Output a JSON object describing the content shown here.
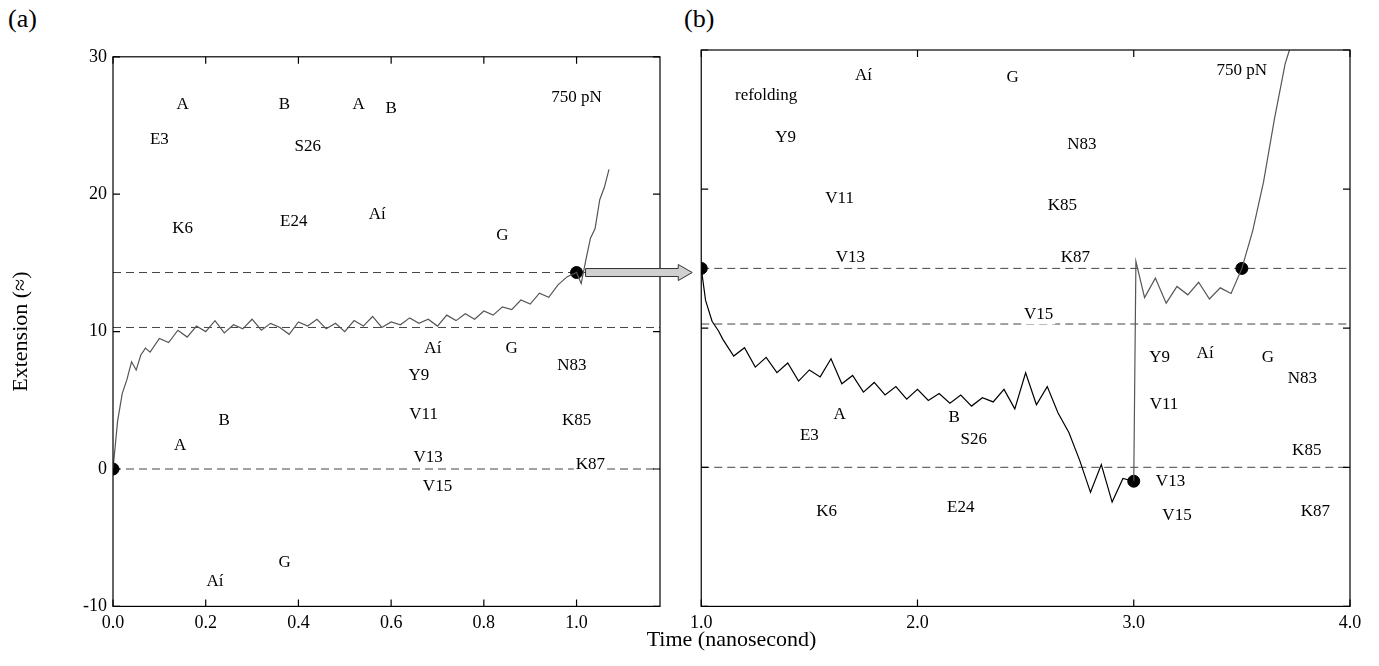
{
  "chart_data": [
    {
      "type": "line",
      "title": "(a)",
      "xlabel": "Time (nanosecond)",
      "ylabel": "Extension (≈)",
      "xlim": [
        0,
        1.18
      ],
      "xticks": [
        {
          "value": 0,
          "label": "0.0"
        },
        {
          "value": 0.2,
          "label": "0.2"
        },
        {
          "value": 0.4,
          "label": "0.4"
        },
        {
          "value": 0.6,
          "label": "0.6"
        },
        {
          "value": 0.8,
          "label": "0.8"
        },
        {
          "value": 1.0,
          "label": "1.0"
        }
      ],
      "ylim": [
        -10,
        30
      ],
      "yticks": [
        -10,
        0,
        10,
        20,
        30
      ],
      "grid": false,
      "x": [
        0,
        0.01,
        0.02,
        0.03,
        0.04,
        0.05,
        0.06,
        0.07,
        0.08,
        0.1,
        0.12,
        0.14,
        0.16,
        0.18,
        0.2,
        0.22,
        0.24,
        0.26,
        0.28,
        0.3,
        0.32,
        0.34,
        0.36,
        0.38,
        0.4,
        0.42,
        0.44,
        0.46,
        0.48,
        0.5,
        0.52,
        0.54,
        0.56,
        0.58,
        0.6,
        0.62,
        0.64,
        0.66,
        0.68,
        0.7,
        0.72,
        0.74,
        0.76,
        0.78,
        0.8,
        0.82,
        0.84,
        0.86,
        0.88,
        0.9,
        0.92,
        0.94,
        0.96,
        0.98,
        1.0,
        1.01,
        1.02,
        1.03,
        1.04,
        1.05,
        1.06,
        1.07
      ],
      "series": [
        {
          "color": "#555555",
          "values": [
            0,
            3.5,
            5.5,
            6.5,
            7.8,
            7.2,
            8.3,
            8.8,
            8.5,
            9.5,
            9.2,
            10.1,
            9.6,
            10.4,
            10.0,
            10.8,
            9.9,
            10.5,
            10.2,
            10.9,
            10.1,
            10.6,
            10.3,
            9.8,
            10.7,
            10.4,
            10.9,
            10.2,
            10.6,
            10.0,
            10.8,
            10.4,
            11.1,
            10.3,
            10.7,
            10.5,
            11.0,
            10.6,
            10.9,
            10.4,
            11.2,
            10.8,
            11.3,
            10.9,
            11.5,
            11.2,
            11.8,
            11.6,
            12.3,
            12.0,
            12.8,
            12.5,
            13.4,
            14.0,
            14.3,
            13.5,
            15.2,
            16.8,
            17.5,
            19.6,
            20.5,
            21.8
          ]
        }
      ],
      "points": {
        "x": [
          0,
          1.0
        ],
        "y": [
          0,
          14.3
        ]
      },
      "reference_lines": [
        0,
        10.3,
        14.3
      ],
      "annotations": [
        {
          "text": "A",
          "x": 0.15,
          "y": 26.5
        },
        {
          "text": "B",
          "x": 0.37,
          "y": 26.5
        },
        {
          "text": "E3",
          "x": 0.1,
          "y": 24
        },
        {
          "text": "S26",
          "x": 0.42,
          "y": 23.5
        },
        {
          "text": "K6",
          "x": 0.15,
          "y": 17.5
        },
        {
          "text": "E24",
          "x": 0.39,
          "y": 18
        },
        {
          "text": "A",
          "x": 0.53,
          "y": 26.5
        },
        {
          "text": "B",
          "x": 0.6,
          "y": 26.2
        },
        {
          "text": "Aí",
          "x": 0.57,
          "y": 18.5
        },
        {
          "text": "G",
          "x": 0.84,
          "y": 17
        },
        {
          "text": "750 pN",
          "x": 1.0,
          "y": 27
        },
        {
          "text": "Aí",
          "x": 0.69,
          "y": 8.8
        },
        {
          "text": "G",
          "x": 0.86,
          "y": 8.8
        },
        {
          "text": "Y9",
          "x": 0.66,
          "y": 6.8
        },
        {
          "text": "N83",
          "x": 0.99,
          "y": 7.5
        },
        {
          "text": "V11",
          "x": 0.67,
          "y": 4
        },
        {
          "text": "K85",
          "x": 1.0,
          "y": 3.5
        },
        {
          "text": "V13",
          "x": 0.68,
          "y": 0.8
        },
        {
          "text": "K87",
          "x": 1.03,
          "y": 0.3
        },
        {
          "text": "V15",
          "x": 0.7,
          "y": -1.3
        },
        {
          "text": "A",
          "x": 0.145,
          "y": 1.7
        },
        {
          "text": "B",
          "x": 0.24,
          "y": 3.5
        },
        {
          "text": "Aí",
          "x": 0.22,
          "y": -8.2
        },
        {
          "text": "G",
          "x": 0.37,
          "y": -6.8
        }
      ]
    },
    {
      "type": "line",
      "title": "(b)",
      "tick_labels": "x",
      "xlim": [
        1.0,
        4.0
      ],
      "xticks": [
        {
          "value": 1.0,
          "label": "1.0"
        },
        {
          "value": 2.0,
          "label": "2.0"
        },
        {
          "value": 3.0,
          "label": "3.0"
        },
        {
          "value": 4.0,
          "label": "4.0"
        }
      ],
      "ylim": [
        -10,
        30
      ],
      "yticks": [
        -10,
        0,
        10,
        20,
        30
      ],
      "grid": false,
      "x": [
        1.0,
        1.02,
        1.05,
        1.08,
        1.1,
        1.15,
        1.2,
        1.25,
        1.3,
        1.35,
        1.4,
        1.45,
        1.5,
        1.55,
        1.6,
        1.65,
        1.7,
        1.75,
        1.8,
        1.85,
        1.9,
        1.95,
        2.0,
        2.05,
        2.1,
        2.15,
        2.2,
        2.25,
        2.3,
        2.35,
        2.4,
        2.45,
        2.5,
        2.55,
        2.6,
        2.65,
        2.7,
        2.75,
        2.8,
        2.85,
        2.9,
        2.95,
        3.0,
        3.01,
        3.05,
        3.1,
        3.15,
        3.2,
        3.25,
        3.3,
        3.35,
        3.4,
        3.45,
        3.5,
        3.55,
        3.6,
        3.65,
        3.7,
        3.72
      ],
      "series": [
        {
          "color": "#000000",
          "values": [
            14.3,
            12.0,
            10.5,
            9.8,
            9.2,
            8.0,
            8.6,
            7.2,
            7.9,
            6.8,
            7.5,
            6.2,
            7.0,
            6.5,
            7.8,
            6.0,
            6.6,
            5.4,
            6.1,
            5.2,
            5.8,
            4.9,
            5.6,
            4.8,
            5.3,
            4.6,
            5.2,
            4.4,
            5.0,
            4.7,
            5.6,
            4.2,
            6.8,
            4.5,
            5.8,
            3.9,
            2.5,
            0.5,
            -1.8,
            0.2,
            -2.5,
            -0.8,
            -1.0,
            null,
            null,
            null,
            null,
            null,
            null,
            null,
            null,
            null,
            null,
            null,
            null,
            null,
            null,
            null,
            null
          ]
        },
        {
          "color": "#555555",
          "values": [
            null,
            null,
            null,
            null,
            null,
            null,
            null,
            null,
            null,
            null,
            null,
            null,
            null,
            null,
            null,
            null,
            null,
            null,
            null,
            null,
            null,
            null,
            null,
            null,
            null,
            null,
            null,
            null,
            null,
            null,
            null,
            null,
            null,
            null,
            null,
            null,
            null,
            null,
            null,
            null,
            null,
            null,
            -1.0,
            14.8,
            12.2,
            13.6,
            11.8,
            13.0,
            12.4,
            13.3,
            12.1,
            12.9,
            12.5,
            14.3,
            17.0,
            20.5,
            25.0,
            29.0,
            30.0
          ]
        }
      ],
      "points": {
        "x": [
          1.0,
          3.0,
          3.5
        ],
        "y": [
          14.3,
          -1.0,
          14.3
        ]
      },
      "reference_lines": [
        0,
        10.3,
        14.3
      ],
      "annotations": [
        {
          "text": "refolding",
          "x": 1.3,
          "y": 26.7
        },
        {
          "text": "750 pN",
          "x": 3.5,
          "y": 28.5
        },
        {
          "text": "Aí",
          "x": 1.75,
          "y": 28.2
        },
        {
          "text": "G",
          "x": 2.44,
          "y": 28
        },
        {
          "text": "Y9",
          "x": 1.39,
          "y": 23.7
        },
        {
          "text": "N83",
          "x": 2.76,
          "y": 23.2
        },
        {
          "text": "V11",
          "x": 1.64,
          "y": 19.3
        },
        {
          "text": "K85",
          "x": 2.67,
          "y": 18.8
        },
        {
          "text": "V13",
          "x": 1.69,
          "y": 15.1
        },
        {
          "text": "K87",
          "x": 2.73,
          "y": 15.1
        },
        {
          "text": "V15",
          "x": 2.56,
          "y": 11
        },
        {
          "text": "A",
          "x": 1.64,
          "y": 3.8
        },
        {
          "text": "B",
          "x": 2.17,
          "y": 3.6
        },
        {
          "text": "E3",
          "x": 1.5,
          "y": 2.3
        },
        {
          "text": "S26",
          "x": 2.26,
          "y": 2
        },
        {
          "text": "K6",
          "x": 1.58,
          "y": -3.2
        },
        {
          "text": "E24",
          "x": 2.2,
          "y": -2.9
        },
        {
          "text": "Y9",
          "x": 3.12,
          "y": 7.9
        },
        {
          "text": "Aí",
          "x": 3.33,
          "y": 8.2
        },
        {
          "text": "G",
          "x": 3.62,
          "y": 7.9
        },
        {
          "text": "N83",
          "x": 3.78,
          "y": 6.4
        },
        {
          "text": "V11",
          "x": 3.14,
          "y": 4.5
        },
        {
          "text": "K85",
          "x": 3.8,
          "y": 1.2
        },
        {
          "text": "V13",
          "x": 3.17,
          "y": -1
        },
        {
          "text": "K87",
          "x": 3.84,
          "y": -3.2
        },
        {
          "text": "V15",
          "x": 3.2,
          "y": -3.5
        }
      ]
    }
  ]
}
